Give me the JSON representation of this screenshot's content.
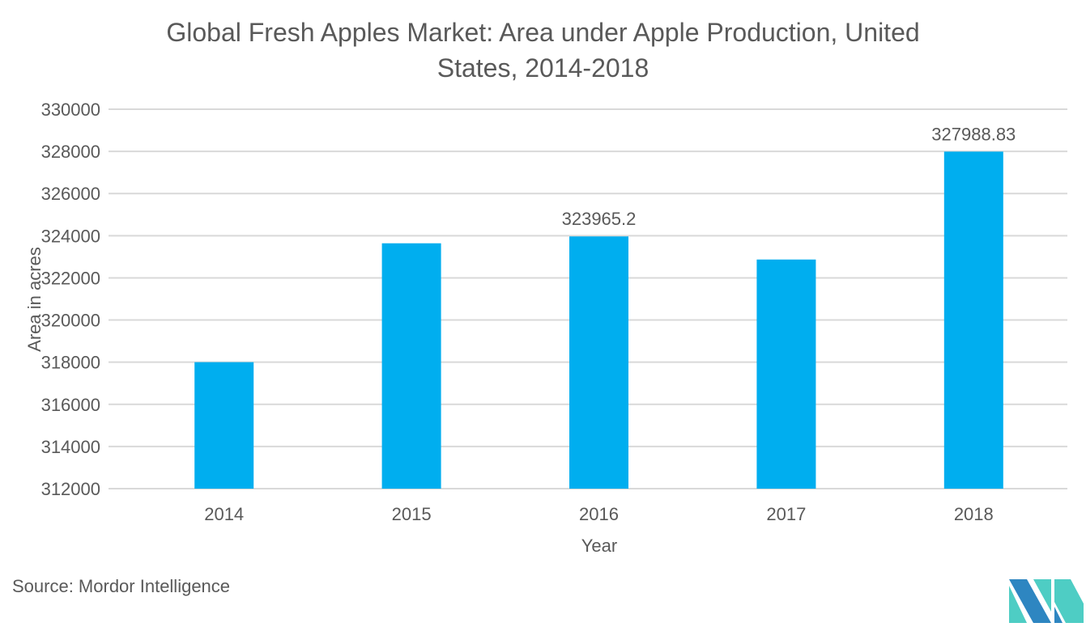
{
  "chart_data": {
    "type": "bar",
    "title_lines": [
      "Global Fresh Apples Market: Area under Apple Production, United",
      "States, 2014-2018"
    ],
    "categories": [
      "2014",
      "2015",
      "2016",
      "2017",
      "2018"
    ],
    "values": [
      318000,
      323640,
      323965.2,
      322870,
      327988.83
    ],
    "data_labels": [
      "",
      "",
      "323965.2",
      "",
      "327988.83"
    ],
    "xlabel": "Year",
    "ylabel": "Area  in acres",
    "ylim": [
      312000,
      330000
    ],
    "yticks": [
      "312000",
      "314000",
      "316000",
      "318000",
      "320000",
      "322000",
      "324000",
      "326000",
      "328000",
      "330000"
    ],
    "grid": true,
    "bar_color": "#00aeef"
  },
  "source": "Source: Mordor Intelligence",
  "logo_colors": {
    "dark": "#2e86c1",
    "light": "#4ecdc4"
  }
}
